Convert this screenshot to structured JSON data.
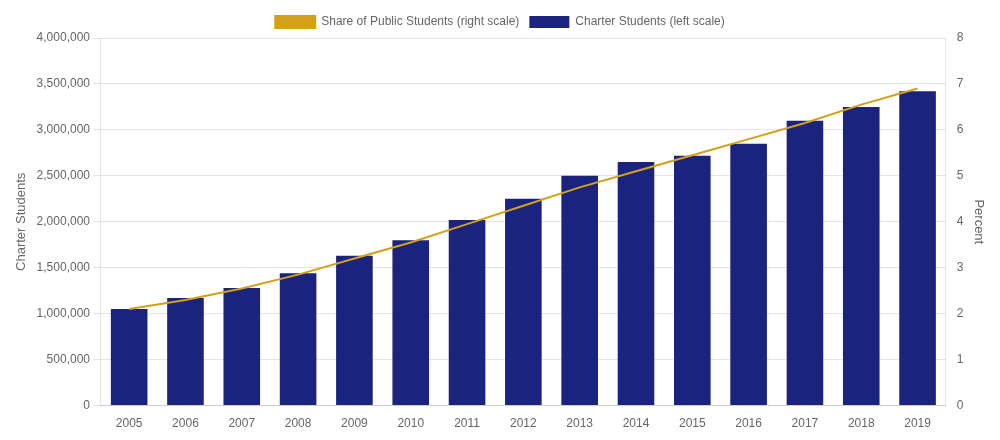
{
  "chart_data": {
    "type": "bar",
    "categories": [
      "2005",
      "2006",
      "2007",
      "2008",
      "2009",
      "2010",
      "2011",
      "2012",
      "2013",
      "2014",
      "2015",
      "2016",
      "2017",
      "2018",
      "2019"
    ],
    "series": [
      {
        "name": "Charter Students (left scale)",
        "type": "bar",
        "color": "#1a237e",
        "values": [
          1050000,
          1170000,
          1280000,
          1440000,
          1630000,
          1800000,
          2020000,
          2250000,
          2500000,
          2650000,
          2720000,
          2850000,
          3100000,
          3250000,
          3420000
        ]
      },
      {
        "name": "Share of Public Students (right scale)",
        "type": "line",
        "color": "#d4a017",
        "axis": "y2",
        "marker": "none",
        "values": [
          2.1,
          2.3,
          2.55,
          2.85,
          3.2,
          3.55,
          3.95,
          4.35,
          4.75,
          5.1,
          5.45,
          5.8,
          6.15,
          6.55,
          6.9
        ]
      }
    ],
    "ylabel": "Charter Students",
    "y2label": "Percent",
    "ylim": [
      0,
      4000000
    ],
    "yticks": [
      0,
      {
        "value": 500000,
        "label": "500,000"
      },
      {
        "value": 1000000,
        "label": "1,000,000"
      },
      {
        "value": 1500000,
        "label": "1,500,000"
      },
      {
        "value": 2000000,
        "label": "2,000,000"
      },
      {
        "value": 2500000,
        "label": "2,500,000"
      },
      {
        "value": 3000000,
        "label": "3,000,000"
      },
      {
        "value": 3500000,
        "label": "3,500,000"
      },
      {
        "value": 4000000,
        "label": "4,000,000"
      }
    ],
    "y2lim": [
      0,
      8
    ],
    "y2ticks": [
      0,
      1,
      2,
      3,
      4,
      5,
      6,
      7,
      8
    ],
    "grid": true,
    "legend": "top"
  }
}
